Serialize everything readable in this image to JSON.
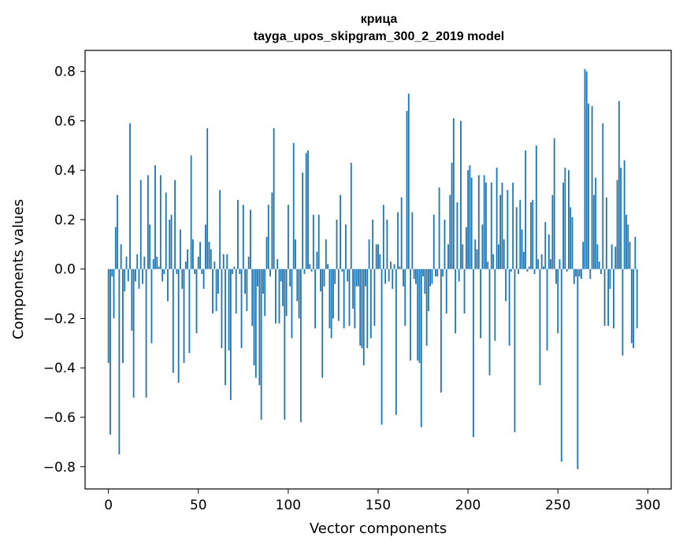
{
  "chart_data": {
    "type": "bar",
    "title": "крица",
    "subtitle": "tayga_upos_skipgram_300_2_2019 model",
    "xlabel": "Vector components",
    "ylabel": "Components values",
    "xlim": [
      -13,
      313
    ],
    "ylim": [
      -0.89,
      0.885
    ],
    "xticks": [
      0,
      50,
      100,
      150,
      200,
      250,
      300
    ],
    "yticks": [
      -0.8,
      -0.6,
      -0.4,
      -0.2,
      0.0,
      0.2,
      0.4,
      0.6,
      0.8
    ],
    "ytick_labels": [
      "−0.8",
      "−0.6",
      "−0.4",
      "−0.2",
      "0.0",
      "0.2",
      "0.4",
      "0.6",
      "0.8"
    ],
    "bar_color": "#1f77b4",
    "grid": false,
    "values": [
      -0.38,
      -0.67,
      -0.03,
      -0.2,
      0.17,
      0.3,
      -0.75,
      0.1,
      -0.38,
      -0.09,
      0.05,
      -0.05,
      0.59,
      -0.25,
      -0.52,
      -0.05,
      0.06,
      -0.08,
      0.36,
      -0.06,
      0.05,
      -0.52,
      0.38,
      0.18,
      -0.3,
      0.04,
      0.42,
      0.05,
      0.01,
      0.38,
      -0.05,
      -0.02,
      0.31,
      -0.13,
      0.2,
      0.22,
      -0.42,
      0.36,
      -0.02,
      -0.46,
      0.16,
      -0.08,
      -0.38,
      0.03,
      0.08,
      -0.34,
      0.46,
      0.12,
      -0.02,
      -0.26,
      0.05,
      0.11,
      -0.02,
      -0.08,
      0.18,
      0.57,
      0.11,
      0.08,
      -0.18,
      0.03,
      -0.17,
      -0.1,
      0.32,
      -0.32,
      0.06,
      -0.47,
      0.06,
      -0.33,
      -0.53,
      -0.02,
      0.01,
      -0.18,
      0.28,
      -0.02,
      -0.32,
      0.26,
      -0.1,
      -0.17,
      0.05,
      0.24,
      -0.23,
      -0.39,
      -0.44,
      -0.07,
      -0.47,
      -0.61,
      -0.1,
      -0.19,
      0.13,
      0.26,
      -0.03,
      0.31,
      0.57,
      -0.22,
      0.04,
      -0.22,
      -0.05,
      -0.15,
      -0.61,
      -0.19,
      0.26,
      -0.07,
      -0.28,
      0.51,
      0.12,
      -0.13,
      -0.2,
      -0.62,
      0.39,
      -0.02,
      0.47,
      0.48,
      0.02,
      -0.01,
      0.22,
      -0.24,
      0.07,
      0.22,
      -0.09,
      -0.44,
      -0.07,
      0.12,
      0.02,
      -0.24,
      -0.28,
      -0.2,
      -0.06,
      0.2,
      -0.21,
      0.3,
      -0.01,
      -0.24,
      0.18,
      -0.05,
      -0.23,
      0.43,
      -0.16,
      -0.24,
      -0.07,
      -0.07,
      -0.31,
      -0.32,
      -0.39,
      -0.07,
      -0.32,
      0.12,
      -0.28,
      0.2,
      -0.23,
      0.1,
      0.1,
      0.06,
      -0.63,
      0.26,
      -0.06,
      0.2,
      -0.05,
      0.03,
      -0.08,
      0.02,
      -0.59,
      0.23,
      0.01,
      0.29,
      -0.07,
      -0.23,
      0.64,
      0.71,
      -0.37,
      0.23,
      -0.04,
      -0.06,
      -0.37,
      -0.38,
      -0.64,
      -0.03,
      -0.1,
      -0.31,
      -0.17,
      -0.07,
      -0.06,
      0.22,
      -0.03,
      -0.03,
      0.33,
      -0.5,
      -0.03,
      0.2,
      -0.18,
      0.1,
      0.3,
      0.43,
      0.61,
      -0.26,
      0.27,
      -0.05,
      0.6,
      0.1,
      -0.18,
      0.17,
      0.4,
      0.42,
      0.37,
      -0.68,
      0.12,
      0.08,
      0.38,
      -0.28,
      0.18,
      0.38,
      0.35,
      0.03,
      -0.43,
      0.35,
      0.06,
      -0.29,
      0.41,
      0.1,
      0.3,
      0.35,
      0.12,
      -0.13,
      0.32,
      -0.31,
      -0.01,
      0.35,
      -0.66,
      0.25,
      -0.02,
      0.28,
      0.16,
      0.07,
      0.48,
      -0.01,
      0.01,
      0.27,
      0.28,
      -0.02,
      0.5,
      0.04,
      -0.47,
      0.06,
      0.01,
      0.19,
      -0.33,
      0.14,
      0.04,
      0.3,
      0.53,
      -0.06,
      -0.26,
      0.04,
      -0.78,
      0.35,
      0.41,
      -0.01,
      0.4,
      0.25,
      0.21,
      -0.06,
      -0.03,
      -0.81,
      -0.03,
      -0.04,
      0.11,
      0.81,
      0.8,
      0.67,
      -0.04,
      0.66,
      0.3,
      0.37,
      0.1,
      0.03,
      -0.02,
      0.59,
      -0.23,
      0.29,
      -0.23,
      -0.08,
      0.1,
      -0.24,
      0.09,
      0.36,
      0.68,
      0.41,
      -0.35,
      0.44,
      0.22,
      0.18,
      0.11,
      -0.3,
      -0.32,
      0.13,
      -0.24
    ]
  }
}
